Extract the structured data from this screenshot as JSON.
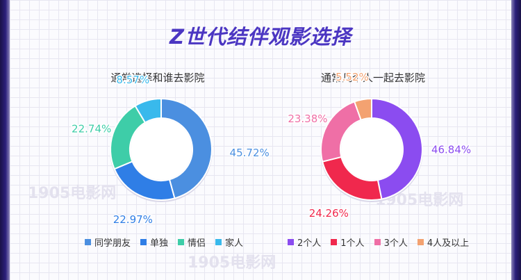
{
  "page": {
    "title": "Z世代结伴观影选择"
  },
  "chart_data": [
    {
      "type": "donut",
      "title": "通常选择和谁去影院",
      "slices": [
        {
          "name": "同学朋友",
          "value": 45.72,
          "label": "45.72%",
          "color": "#4b8fe0"
        },
        {
          "name": "单独",
          "value": 22.97,
          "label": "22.97%",
          "color": "#2f7ee6"
        },
        {
          "name": "情侣",
          "value": 22.74,
          "label": "22.74%",
          "color": "#3ecda8"
        },
        {
          "name": "家人",
          "value": 8.57,
          "label": "8.57%",
          "color": "#39b9ec"
        }
      ],
      "legend": [
        "同学朋友",
        "单独",
        "情侣",
        "家人"
      ]
    },
    {
      "type": "donut",
      "title": "通常几个人一起去影院",
      "slices": [
        {
          "name": "2个人",
          "value": 46.84,
          "label": "46.84%",
          "color": "#8b4cf0"
        },
        {
          "name": "1个人",
          "value": 24.26,
          "label": "24.26%",
          "color": "#f0284d"
        },
        {
          "name": "3个人",
          "value": 23.38,
          "label": "23.38%",
          "color": "#ef6fa6"
        },
        {
          "name": "4人及以上",
          "value": 5.52,
          "label": "5.52%",
          "color": "#f3a271"
        }
      ],
      "legend": [
        "2个人",
        "1个人",
        "3个人",
        "4人及以上"
      ]
    }
  ]
}
